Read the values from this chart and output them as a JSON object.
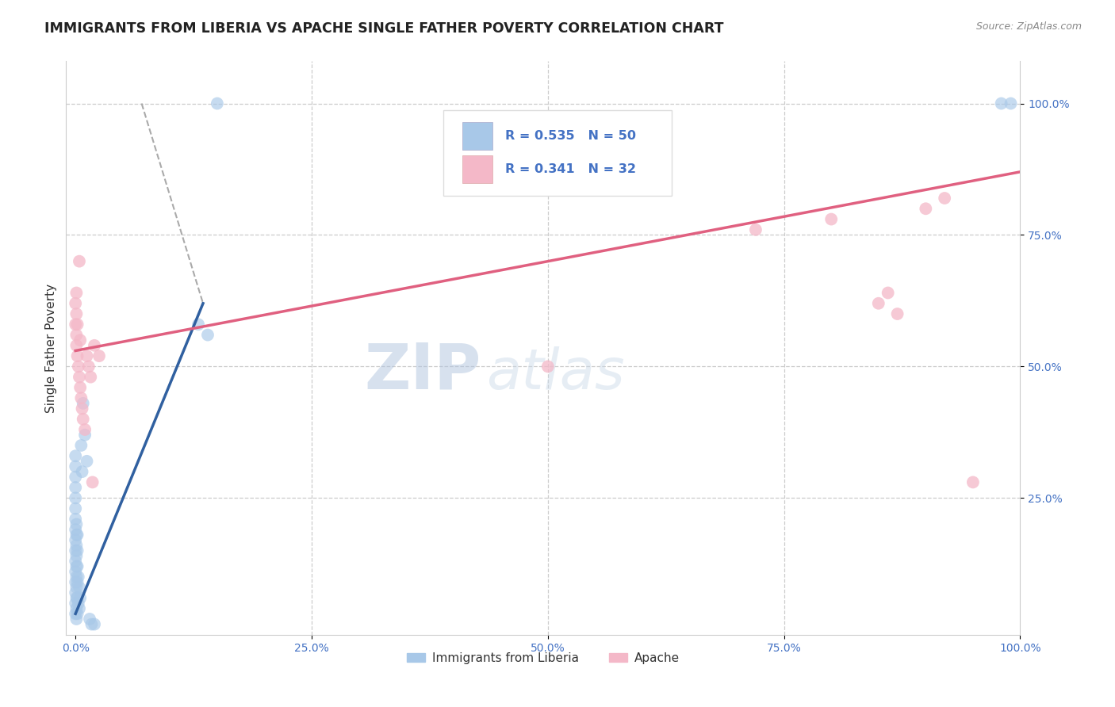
{
  "title": "IMMIGRANTS FROM LIBERIA VS APACHE SINGLE FATHER POVERTY CORRELATION CHART",
  "source": "Source: ZipAtlas.com",
  "xlabel_blue": "Immigrants from Liberia",
  "xlabel_pink": "Apache",
  "ylabel": "Single Father Poverty",
  "watermark_zip": "ZIP",
  "watermark_atlas": "atlas",
  "legend_blue_R": "0.535",
  "legend_blue_N": "50",
  "legend_pink_R": "0.341",
  "legend_pink_N": "32",
  "blue_color": "#a8c8e8",
  "pink_color": "#f4b8c8",
  "blue_line_color": "#3060a0",
  "pink_line_color": "#e06080",
  "blue_scatter": [
    [
      0.0,
      0.03
    ],
    [
      0.0,
      0.05
    ],
    [
      0.0,
      0.07
    ],
    [
      0.0,
      0.09
    ],
    [
      0.0,
      0.11
    ],
    [
      0.0,
      0.13
    ],
    [
      0.0,
      0.15
    ],
    [
      0.0,
      0.17
    ],
    [
      0.0,
      0.19
    ],
    [
      0.0,
      0.21
    ],
    [
      0.0,
      0.23
    ],
    [
      0.0,
      0.25
    ],
    [
      0.0,
      0.27
    ],
    [
      0.0,
      0.29
    ],
    [
      0.0,
      0.31
    ],
    [
      0.0,
      0.33
    ],
    [
      0.001,
      0.02
    ],
    [
      0.001,
      0.04
    ],
    [
      0.001,
      0.06
    ],
    [
      0.001,
      0.08
    ],
    [
      0.001,
      0.1
    ],
    [
      0.001,
      0.12
    ],
    [
      0.001,
      0.14
    ],
    [
      0.001,
      0.16
    ],
    [
      0.001,
      0.18
    ],
    [
      0.001,
      0.2
    ],
    [
      0.002,
      0.03
    ],
    [
      0.002,
      0.06
    ],
    [
      0.002,
      0.09
    ],
    [
      0.002,
      0.12
    ],
    [
      0.002,
      0.15
    ],
    [
      0.002,
      0.18
    ],
    [
      0.003,
      0.05
    ],
    [
      0.003,
      0.1
    ],
    [
      0.004,
      0.04
    ],
    [
      0.004,
      0.08
    ],
    [
      0.005,
      0.06
    ],
    [
      0.006,
      0.35
    ],
    [
      0.007,
      0.3
    ],
    [
      0.008,
      0.43
    ],
    [
      0.01,
      0.37
    ],
    [
      0.012,
      0.32
    ],
    [
      0.015,
      0.02
    ],
    [
      0.017,
      0.01
    ],
    [
      0.02,
      0.01
    ],
    [
      0.13,
      0.58
    ],
    [
      0.14,
      0.56
    ],
    [
      0.15,
      1.0
    ],
    [
      0.98,
      1.0
    ],
    [
      0.99,
      1.0
    ]
  ],
  "pink_scatter": [
    [
      0.0,
      0.58
    ],
    [
      0.0,
      0.62
    ],
    [
      0.001,
      0.54
    ],
    [
      0.001,
      0.56
    ],
    [
      0.001,
      0.6
    ],
    [
      0.001,
      0.64
    ],
    [
      0.002,
      0.52
    ],
    [
      0.002,
      0.58
    ],
    [
      0.003,
      0.5
    ],
    [
      0.004,
      0.48
    ],
    [
      0.004,
      0.7
    ],
    [
      0.005,
      0.46
    ],
    [
      0.005,
      0.55
    ],
    [
      0.006,
      0.44
    ],
    [
      0.007,
      0.42
    ],
    [
      0.008,
      0.4
    ],
    [
      0.01,
      0.38
    ],
    [
      0.012,
      0.52
    ],
    [
      0.014,
      0.5
    ],
    [
      0.016,
      0.48
    ],
    [
      0.018,
      0.28
    ],
    [
      0.02,
      0.54
    ],
    [
      0.025,
      0.52
    ],
    [
      0.5,
      0.5
    ],
    [
      0.72,
      0.76
    ],
    [
      0.8,
      0.78
    ],
    [
      0.85,
      0.62
    ],
    [
      0.86,
      0.64
    ],
    [
      0.87,
      0.6
    ],
    [
      0.9,
      0.8
    ],
    [
      0.92,
      0.82
    ],
    [
      0.95,
      0.28
    ]
  ],
  "blue_trendline_x": [
    0.0,
    0.135
  ],
  "blue_trendline_y": [
    0.03,
    0.62
  ],
  "pink_trendline_x": [
    0.0,
    1.0
  ],
  "pink_trendline_y": [
    0.53,
    0.87
  ],
  "dashed_line_x": [
    0.07,
    0.135
  ],
  "dashed_line_y": [
    1.0,
    0.62
  ],
  "xlim": [
    -0.01,
    1.0
  ],
  "ylim": [
    -0.01,
    1.08
  ],
  "xticks": [
    0.0,
    0.25,
    0.5,
    0.75,
    1.0
  ],
  "xtick_labels": [
    "0.0%",
    "25.0%",
    "50.0%",
    "75.0%",
    "100.0%"
  ],
  "yticks": [
    0.25,
    0.5,
    0.75,
    1.0
  ],
  "ytick_labels": [
    "25.0%",
    "50.0%",
    "75.0%",
    "100.0%"
  ]
}
